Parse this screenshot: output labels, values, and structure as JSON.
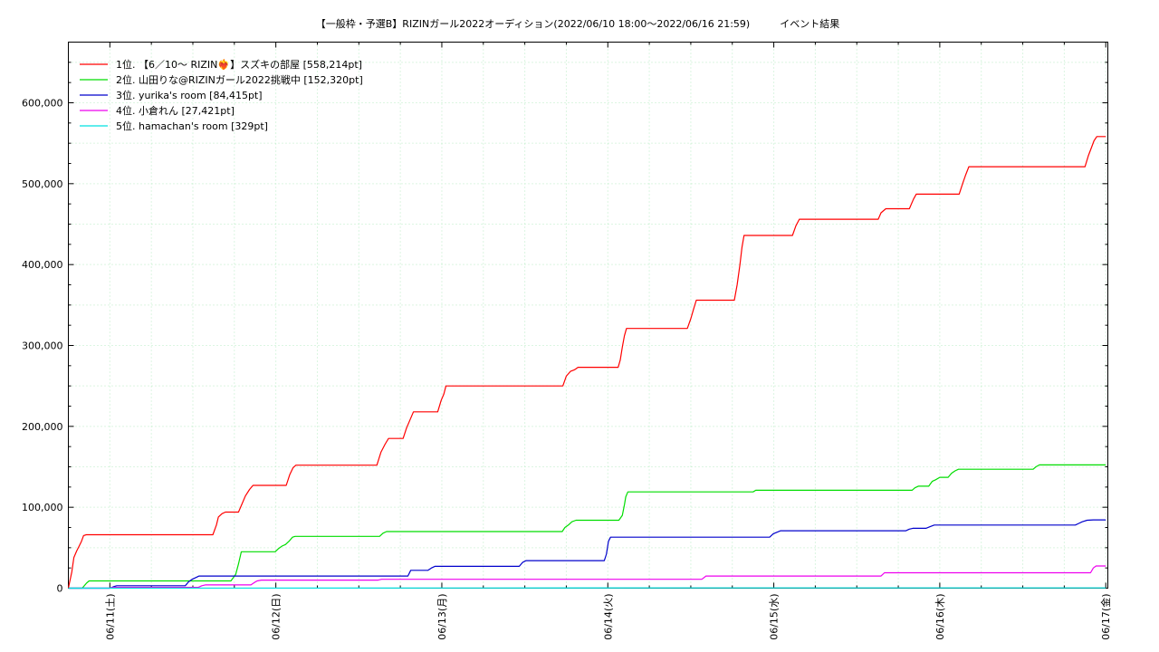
{
  "chart_data": {
    "type": "line",
    "title": "【一般枠・予選B】RIZINガール2022オーディション(2022/06/10 18:00〜2022/06/16 21:59)　　　イベント結果",
    "xlabel": "",
    "ylabel": "",
    "x_tick_labels": [
      "06/11(土)",
      "06/12(日)",
      "06/13(月)",
      "06/14(火)",
      "06/15(水)",
      "06/16(木)",
      "06/17(金)"
    ],
    "x_tick_hours": [
      6,
      30,
      54,
      78,
      102,
      126,
      150
    ],
    "x_range_hours": [
      0,
      150.3
    ],
    "y_tick_labels": [
      "0",
      "100,000",
      "200,000",
      "300,000",
      "400,000",
      "500,000",
      "600,000"
    ],
    "y_ticks": [
      0,
      100000,
      200000,
      300000,
      400000,
      500000,
      600000
    ],
    "ylim": [
      0,
      675000
    ],
    "grid": true,
    "legend_position": "top-left",
    "series": [
      {
        "name": "1位. 【6／10〜 RIZIN❤️‍🔥】スズキの部屋 [558,214pt]",
        "color": "#ff0000",
        "points": [
          [
            0,
            0
          ],
          [
            0.5,
            20000
          ],
          [
            0.8,
            38000
          ],
          [
            1.2,
            46000
          ],
          [
            1.5,
            51000
          ],
          [
            1.9,
            58000
          ],
          [
            2.2,
            65000
          ],
          [
            2.6,
            66000
          ],
          [
            20.9,
            66000
          ],
          [
            21.4,
            78000
          ],
          [
            21.7,
            88000
          ],
          [
            22.2,
            92000
          ],
          [
            22.7,
            94000
          ],
          [
            24.6,
            94000
          ],
          [
            25.1,
            104000
          ],
          [
            25.6,
            114000
          ],
          [
            26.2,
            122000
          ],
          [
            26.7,
            127000
          ],
          [
            31.5,
            127000
          ],
          [
            32.0,
            140000
          ],
          [
            32.5,
            149000
          ],
          [
            32.9,
            152000
          ],
          [
            44.6,
            152000
          ],
          [
            45.2,
            168000
          ],
          [
            45.8,
            178000
          ],
          [
            46.3,
            185000
          ],
          [
            48.4,
            185000
          ],
          [
            48.9,
            198000
          ],
          [
            49.4,
            208000
          ],
          [
            49.9,
            218000
          ],
          [
            53.4,
            218000
          ],
          [
            53.9,
            232000
          ],
          [
            54.3,
            240000
          ],
          [
            54.6,
            250000
          ],
          [
            71.5,
            250000
          ],
          [
            72.0,
            262000
          ],
          [
            72.6,
            268000
          ],
          [
            73.2,
            270000
          ],
          [
            73.7,
            273000
          ],
          [
            79.5,
            273000
          ],
          [
            79.8,
            282000
          ],
          [
            80.1,
            298000
          ],
          [
            80.4,
            312000
          ],
          [
            80.7,
            321000
          ],
          [
            89.5,
            321000
          ],
          [
            90.0,
            333000
          ],
          [
            90.4,
            345000
          ],
          [
            90.8,
            356000
          ],
          [
            96.3,
            356000
          ],
          [
            96.7,
            375000
          ],
          [
            97.1,
            400000
          ],
          [
            97.4,
            421000
          ],
          [
            97.7,
            436000
          ],
          [
            104.7,
            436000
          ],
          [
            105.2,
            448000
          ],
          [
            105.7,
            456000
          ],
          [
            117.1,
            456000
          ],
          [
            117.5,
            464000
          ],
          [
            118.2,
            469000
          ],
          [
            121.6,
            469000
          ],
          [
            122.2,
            481000
          ],
          [
            122.6,
            487000
          ],
          [
            128.8,
            487000
          ],
          [
            129.3,
            500000
          ],
          [
            129.7,
            510000
          ],
          [
            130.2,
            521000
          ],
          [
            147.0,
            521000
          ],
          [
            147.5,
            535000
          ],
          [
            147.9,
            544000
          ],
          [
            148.3,
            553000
          ],
          [
            148.7,
            558214
          ],
          [
            150.0,
            558214
          ]
        ]
      },
      {
        "name": "2位. 山田りな@RIZINガール2022挑戦中 [152,320pt]",
        "color": "#00dd00",
        "points": [
          [
            0,
            0
          ],
          [
            2.0,
            0
          ],
          [
            2.6,
            6000
          ],
          [
            3.0,
            9000
          ],
          [
            23.5,
            9000
          ],
          [
            24.2,
            17000
          ],
          [
            24.6,
            30000
          ],
          [
            25.0,
            45000
          ],
          [
            29.9,
            45000
          ],
          [
            30.4,
            49000
          ],
          [
            30.9,
            52000
          ],
          [
            31.4,
            54000
          ],
          [
            31.9,
            58000
          ],
          [
            32.4,
            63000
          ],
          [
            32.8,
            64000
          ],
          [
            45.0,
            64000
          ],
          [
            45.5,
            68000
          ],
          [
            46.0,
            70000
          ],
          [
            71.4,
            70000
          ],
          [
            71.8,
            75000
          ],
          [
            72.3,
            78000
          ],
          [
            72.8,
            82000
          ],
          [
            73.4,
            84000
          ],
          [
            79.6,
            84000
          ],
          [
            80.1,
            90000
          ],
          [
            80.4,
            103000
          ],
          [
            80.6,
            113000
          ],
          [
            80.9,
            119000
          ],
          [
            99.0,
            119000
          ],
          [
            99.4,
            121000
          ],
          [
            122.0,
            121000
          ],
          [
            122.4,
            124000
          ],
          [
            122.9,
            126000
          ],
          [
            124.4,
            126000
          ],
          [
            124.9,
            132000
          ],
          [
            125.4,
            134000
          ],
          [
            126.0,
            137000
          ],
          [
            127.2,
            137000
          ],
          [
            127.7,
            142000
          ],
          [
            128.2,
            145000
          ],
          [
            128.7,
            147000
          ],
          [
            139.5,
            147000
          ],
          [
            139.9,
            150000
          ],
          [
            140.4,
            152320
          ],
          [
            150.0,
            152320
          ]
        ]
      },
      {
        "name": "3位. yurika's room [84,415pt]",
        "color": "#0000cc",
        "points": [
          [
            0,
            0
          ],
          [
            6.0,
            0
          ],
          [
            6.6,
            2000
          ],
          [
            7.0,
            3000
          ],
          [
            16.9,
            3000
          ],
          [
            17.4,
            8000
          ],
          [
            17.9,
            11000
          ],
          [
            18.4,
            13000
          ],
          [
            18.9,
            15000
          ],
          [
            49.1,
            15000
          ],
          [
            49.5,
            22000
          ],
          [
            52.0,
            22000
          ],
          [
            52.5,
            25000
          ],
          [
            53.0,
            27000
          ],
          [
            65.2,
            27000
          ],
          [
            65.7,
            32000
          ],
          [
            66.2,
            34000
          ],
          [
            77.5,
            34000
          ],
          [
            77.8,
            42000
          ],
          [
            78.1,
            58000
          ],
          [
            78.4,
            63000
          ],
          [
            101.4,
            63000
          ],
          [
            101.9,
            67000
          ],
          [
            102.4,
            69000
          ],
          [
            103.0,
            71000
          ],
          [
            121.1,
            71000
          ],
          [
            121.6,
            73000
          ],
          [
            122.1,
            74000
          ],
          [
            124.0,
            74000
          ],
          [
            124.6,
            76000
          ],
          [
            125.2,
            78000
          ],
          [
            145.6,
            78000
          ],
          [
            146.1,
            80000
          ],
          [
            146.6,
            82000
          ],
          [
            147.3,
            84000
          ],
          [
            148.2,
            84415
          ],
          [
            150.0,
            84415
          ]
        ]
      },
      {
        "name": "4位. 小倉れん [27,421pt]",
        "color": "#ee00ee",
        "points": [
          [
            0,
            0
          ],
          [
            6.0,
            0
          ],
          [
            6.5,
            1000
          ],
          [
            18.8,
            1000
          ],
          [
            19.3,
            3000
          ],
          [
            19.8,
            4000
          ],
          [
            26.4,
            4000
          ],
          [
            26.9,
            7000
          ],
          [
            27.3,
            9000
          ],
          [
            27.9,
            10000
          ],
          [
            44.8,
            10000
          ],
          [
            45.3,
            11000
          ],
          [
            91.6,
            11000
          ],
          [
            92.2,
            15000
          ],
          [
            117.5,
            15000
          ],
          [
            118.0,
            19000
          ],
          [
            147.8,
            19000
          ],
          [
            148.2,
            25000
          ],
          [
            148.6,
            27421
          ],
          [
            150.0,
            27421
          ]
        ]
      },
      {
        "name": "5位. hamachan's room [329pt]",
        "color": "#00e0e0",
        "points": [
          [
            0,
            0
          ],
          [
            60.0,
            200
          ],
          [
            90.0,
            329
          ],
          [
            150.0,
            329
          ]
        ]
      }
    ]
  }
}
